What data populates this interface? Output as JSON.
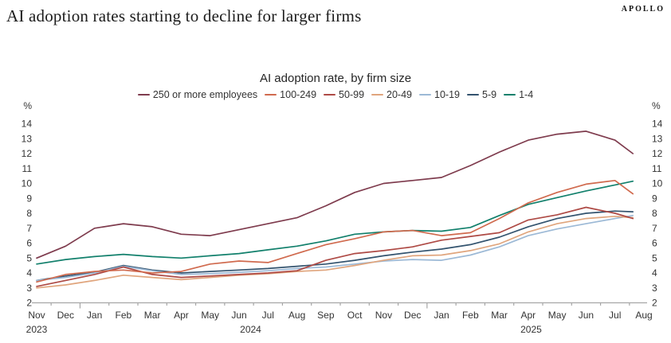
{
  "header": {
    "title": "AI adoption rates starting to decline for larger firms",
    "brand": "APOLLO"
  },
  "chart_data": {
    "type": "line",
    "title": "AI adoption rate, by firm size",
    "unit_label": "%",
    "grid": false,
    "legend_position": "top",
    "ylim": [
      2,
      14
    ],
    "yticks": [
      2,
      3,
      4,
      5,
      6,
      7,
      8,
      9,
      10,
      11,
      12,
      13,
      14
    ],
    "x_labels": [
      "Nov",
      "Dec",
      "Jan",
      "Feb",
      "Mar",
      "Apr",
      "May",
      "Jun",
      "Jul",
      "Aug",
      "Sep",
      "Oct",
      "Nov",
      "Dec",
      "Jan",
      "Feb",
      "Mar",
      "Apr",
      "May",
      "Jun",
      "Jul",
      "Aug"
    ],
    "year_labels": [
      {
        "text": "2023",
        "x_index": 0
      },
      {
        "text": "2024",
        "x_index": 7.4
      },
      {
        "text": "2025",
        "x_index": 17.1
      }
    ],
    "series": [
      {
        "name": "250 or more employees",
        "color": "#7E3B4D",
        "values": [
          5.0,
          5.8,
          7.0,
          7.3,
          7.1,
          6.6,
          6.5,
          6.9,
          7.3,
          7.7,
          8.5,
          9.4,
          10.0,
          10.2,
          10.4,
          11.2,
          12.1,
          12.9,
          13.3,
          13.5,
          12.9,
          12.0
        ]
      },
      {
        "name": "100-249",
        "color": "#D06A4E",
        "values": [
          3.4,
          3.9,
          4.1,
          4.2,
          4.0,
          4.1,
          4.6,
          4.8,
          4.7,
          5.3,
          5.9,
          6.3,
          6.75,
          6.85,
          6.5,
          6.7,
          7.65,
          8.7,
          9.4,
          9.95,
          10.2,
          9.3
        ]
      },
      {
        "name": "50-99",
        "color": "#AE4A45",
        "values": [
          3.1,
          3.5,
          3.9,
          4.4,
          3.9,
          3.7,
          3.8,
          3.9,
          4.0,
          4.15,
          4.85,
          5.3,
          5.5,
          5.75,
          6.2,
          6.45,
          6.7,
          7.55,
          7.9,
          8.4,
          8.0,
          7.65
        ]
      },
      {
        "name": "20-49",
        "color": "#E0A57D",
        "values": [
          3.0,
          3.2,
          3.5,
          3.85,
          3.7,
          3.55,
          3.7,
          3.85,
          3.95,
          4.1,
          4.2,
          4.5,
          4.85,
          5.15,
          5.2,
          5.5,
          5.95,
          6.75,
          7.3,
          7.65,
          7.8,
          7.7
        ]
      },
      {
        "name": "10-19",
        "color": "#9CB9D6",
        "values": [
          3.5,
          3.7,
          4.0,
          4.45,
          4.15,
          3.9,
          3.95,
          4.05,
          4.15,
          4.3,
          4.4,
          4.6,
          4.8,
          4.9,
          4.85,
          5.2,
          5.75,
          6.5,
          6.95,
          7.3,
          7.65,
          7.85
        ]
      },
      {
        "name": "5-9",
        "color": "#33536E",
        "values": [
          3.5,
          3.8,
          4.05,
          4.5,
          4.2,
          4.0,
          4.1,
          4.2,
          4.3,
          4.45,
          4.6,
          4.85,
          5.15,
          5.4,
          5.6,
          5.9,
          6.4,
          7.1,
          7.65,
          8.0,
          8.15,
          8.1
        ]
      },
      {
        "name": "1-4",
        "color": "#12806C",
        "values": [
          4.6,
          4.9,
          5.1,
          5.25,
          5.1,
          5.0,
          5.15,
          5.3,
          5.55,
          5.8,
          6.15,
          6.6,
          6.75,
          6.85,
          6.8,
          7.05,
          7.85,
          8.6,
          9.05,
          9.5,
          9.9,
          10.15
        ]
      }
    ]
  }
}
